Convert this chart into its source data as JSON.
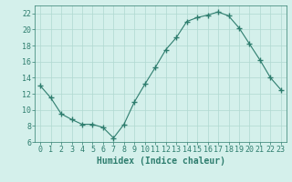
{
  "x": [
    0,
    1,
    2,
    3,
    4,
    5,
    6,
    7,
    8,
    9,
    10,
    11,
    12,
    13,
    14,
    15,
    16,
    17,
    18,
    19,
    20,
    21,
    22,
    23
  ],
  "y": [
    13,
    11.5,
    9.5,
    8.8,
    8.2,
    8.2,
    7.8,
    6.5,
    8.2,
    11.0,
    13.2,
    15.3,
    17.5,
    19.0,
    21.0,
    21.5,
    21.8,
    22.2,
    21.7,
    20.2,
    18.2,
    16.2,
    14.0,
    12.5
  ],
  "line_color": "#2e7d6e",
  "marker": "+",
  "marker_size": 4,
  "marker_linewidth": 1.0,
  "bg_color": "#d4f0eb",
  "grid_color": "#b0d8d0",
  "xlabel": "Humidex (Indice chaleur)",
  "ylim": [
    6,
    23
  ],
  "xlim": [
    -0.5,
    23.5
  ],
  "yticks": [
    6,
    8,
    10,
    12,
    14,
    16,
    18,
    20,
    22
  ],
  "xticks": [
    0,
    1,
    2,
    3,
    4,
    5,
    6,
    7,
    8,
    9,
    10,
    11,
    12,
    13,
    14,
    15,
    16,
    17,
    18,
    19,
    20,
    21,
    22,
    23
  ],
  "xlabel_fontsize": 7,
  "tick_fontsize": 6,
  "tick_color": "#2e7d6e",
  "label_color": "#2e7d6e",
  "line_width": 0.8
}
